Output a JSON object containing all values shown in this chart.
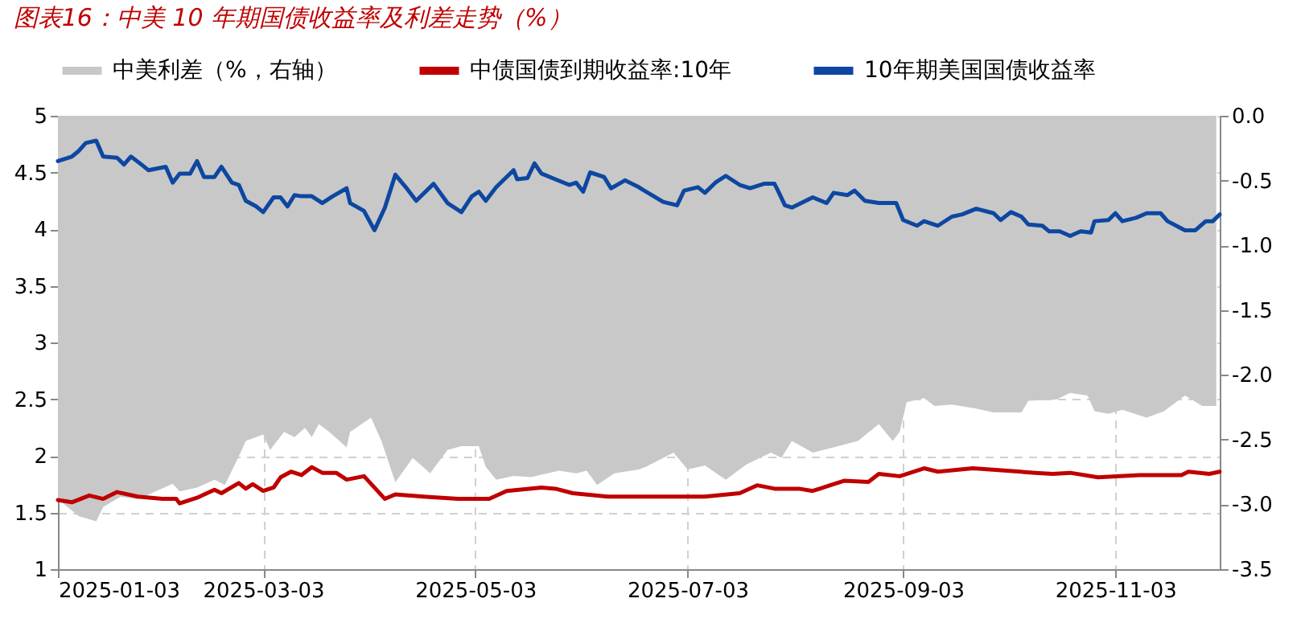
{
  "chart_data": {
    "type": "line",
    "title": "图表16：中美 10 年期国债收益率及利差走势（%）",
    "legend": "top",
    "grid": true,
    "xlim": [
      "2025-01-03",
      "2025-12-03"
    ],
    "xticks": [
      "2025-01-03",
      "2025-03-03",
      "2025-05-03",
      "2025-07-03",
      "2025-09-03",
      "2025-11-03"
    ],
    "ylim": [
      1,
      5
    ],
    "yticks": [
      1,
      1.5,
      2,
      2.5,
      3,
      3.5,
      4,
      4.5,
      5
    ],
    "y2lim": [
      -3.5,
      0
    ],
    "y2ticks": [
      {
        "value": 0,
        "label": "0.0"
      },
      -0.5,
      {
        "value": -1,
        "label": "-1.0"
      },
      -1.5,
      {
        "value": -2,
        "label": "-2.0"
      },
      -2.5,
      {
        "value": -3,
        "label": "-3.0"
      },
      -3.5
    ],
    "series": [
      {
        "name": "中美利差（%，右轴）",
        "type": "area",
        "axis": "y2",
        "color": "#c8c8c8",
        "x": [
          "2025-01-03",
          "2025-01-09",
          "2025-01-14",
          "2025-01-16",
          "2025-01-21",
          "2025-01-26",
          "2025-02-05",
          "2025-02-07",
          "2025-02-12",
          "2025-02-17",
          "2025-02-20",
          "2025-02-24",
          "2025-02-26",
          "2025-03-03",
          "2025-03-05",
          "2025-03-09",
          "2025-03-12",
          "2025-03-15",
          "2025-03-17",
          "2025-03-19",
          "2025-03-22",
          "2025-03-27",
          "2025-03-28",
          "2025-04-03",
          "2025-04-06",
          "2025-04-10",
          "2025-04-15",
          "2025-04-20",
          "2025-04-25",
          "2025-04-29",
          "2025-05-04",
          "2025-05-06",
          "2025-05-09",
          "2025-05-14",
          "2025-05-19",
          "2025-05-27",
          "2025-06-01",
          "2025-06-04",
          "2025-06-07",
          "2025-06-12",
          "2025-06-19",
          "2025-06-21",
          "2025-06-29",
          "2025-07-03",
          "2025-07-08",
          "2025-07-14",
          "2025-07-20",
          "2025-07-27",
          "2025-07-30",
          "2025-08-02",
          "2025-08-08",
          "2025-08-14",
          "2025-08-21",
          "2025-08-27",
          "2025-08-31",
          "2025-09-02",
          "2025-09-04",
          "2025-09-09",
          "2025-09-12",
          "2025-09-17",
          "2025-09-24",
          "2025-09-29",
          "2025-10-07",
          "2025-10-09",
          "2025-10-17",
          "2025-10-21",
          "2025-10-26",
          "2025-10-28",
          "2025-11-01",
          "2025-11-05",
          "2025-11-12",
          "2025-11-17",
          "2025-11-23",
          "2025-11-28",
          "2025-12-02"
        ],
        "values": [
          -2.96,
          -3.09,
          -3.13,
          -3.02,
          -2.94,
          -2.96,
          -2.84,
          -2.9,
          -2.87,
          -2.81,
          -2.85,
          -2.63,
          -2.51,
          -2.46,
          -2.58,
          -2.44,
          -2.48,
          -2.41,
          -2.48,
          -2.38,
          -2.44,
          -2.56,
          -2.44,
          -2.33,
          -2.51,
          -2.83,
          -2.64,
          -2.76,
          -2.58,
          -2.55,
          -2.55,
          -2.71,
          -2.81,
          -2.78,
          -2.79,
          -2.74,
          -2.76,
          -2.74,
          -2.85,
          -2.76,
          -2.73,
          -2.71,
          -2.6,
          -2.73,
          -2.7,
          -2.81,
          -2.69,
          -2.6,
          -2.64,
          -2.51,
          -2.6,
          -2.56,
          -2.51,
          -2.38,
          -2.51,
          -2.44,
          -2.21,
          -2.18,
          -2.24,
          -2.23,
          -2.26,
          -2.29,
          -2.29,
          -2.2,
          -2.19,
          -2.14,
          -2.16,
          -2.28,
          -2.3,
          -2.27,
          -2.33,
          -2.28,
          -2.16,
          -2.24,
          -2.24
        ]
      },
      {
        "name": "中债国债到期收益率:10年",
        "color": "#c00000",
        "x": [
          "2025-01-03",
          "2025-01-07",
          "2025-01-12",
          "2025-01-16",
          "2025-01-20",
          "2025-01-26",
          "2025-02-02",
          "2025-02-06",
          "2025-02-07",
          "2025-02-12",
          "2025-02-17",
          "2025-02-19",
          "2025-02-24",
          "2025-02-26",
          "2025-02-28",
          "2025-03-03",
          "2025-03-06",
          "2025-03-08",
          "2025-03-11",
          "2025-03-14",
          "2025-03-17",
          "2025-03-20",
          "2025-03-24",
          "2025-03-27",
          "2025-04-01",
          "2025-04-07",
          "2025-04-10",
          "2025-04-18",
          "2025-04-28",
          "2025-05-07",
          "2025-05-12",
          "2025-05-22",
          "2025-05-26",
          "2025-05-31",
          "2025-06-10",
          "2025-06-19",
          "2025-06-23",
          "2025-07-08",
          "2025-07-18",
          "2025-07-23",
          "2025-07-28",
          "2025-08-04",
          "2025-08-08",
          "2025-08-13",
          "2025-08-17",
          "2025-08-24",
          "2025-08-27",
          "2025-09-02",
          "2025-09-09",
          "2025-09-13",
          "2025-09-23",
          "2025-10-02",
          "2025-10-11",
          "2025-10-16",
          "2025-10-21",
          "2025-10-29",
          "2025-11-10",
          "2025-11-22",
          "2025-11-24",
          "2025-11-30",
          "2025-12-03"
        ],
        "values": [
          1.61,
          1.59,
          1.65,
          1.62,
          1.68,
          1.64,
          1.62,
          1.62,
          1.58,
          1.63,
          1.7,
          1.67,
          1.76,
          1.71,
          1.75,
          1.69,
          1.72,
          1.81,
          1.86,
          1.83,
          1.9,
          1.85,
          1.85,
          1.79,
          1.82,
          1.62,
          1.66,
          1.64,
          1.62,
          1.62,
          1.69,
          1.72,
          1.71,
          1.67,
          1.64,
          1.64,
          1.64,
          1.64,
          1.67,
          1.74,
          1.71,
          1.71,
          1.69,
          1.74,
          1.78,
          1.77,
          1.84,
          1.82,
          1.89,
          1.86,
          1.89,
          1.87,
          1.85,
          1.84,
          1.85,
          1.81,
          1.83,
          1.83,
          1.86,
          1.84,
          1.86
        ]
      },
      {
        "name": "10年期美国国债收益率",
        "color": "#0d47a1",
        "x": [
          "2025-01-03",
          "2025-01-07",
          "2025-01-09",
          "2025-01-11",
          "2025-01-14",
          "2025-01-16",
          "2025-01-20",
          "2025-01-22",
          "2025-01-24",
          "2025-01-27",
          "2025-01-29",
          "2025-02-03",
          "2025-02-05",
          "2025-02-07",
          "2025-02-10",
          "2025-02-12",
          "2025-02-14",
          "2025-02-17",
          "2025-02-19",
          "2025-02-22",
          "2025-02-24",
          "2025-02-26",
          "2025-03-01",
          "2025-03-03",
          "2025-03-06",
          "2025-03-08",
          "2025-03-10",
          "2025-03-12",
          "2025-03-14",
          "2025-03-17",
          "2025-03-20",
          "2025-03-23",
          "2025-03-27",
          "2025-03-28",
          "2025-04-01",
          "2025-04-04",
          "2025-04-07",
          "2025-04-10",
          "2025-04-13",
          "2025-04-16",
          "2025-04-21",
          "2025-04-25",
          "2025-04-29",
          "2025-05-02",
          "2025-05-04",
          "2025-05-06",
          "2025-05-09",
          "2025-05-14",
          "2025-05-15",
          "2025-05-18",
          "2025-05-20",
          "2025-05-22",
          "2025-05-26",
          "2025-05-30",
          "2025-06-01",
          "2025-06-03",
          "2025-06-05",
          "2025-06-09",
          "2025-06-11",
          "2025-06-15",
          "2025-06-19",
          "2025-06-20",
          "2025-06-26",
          "2025-06-30",
          "2025-07-02",
          "2025-07-06",
          "2025-07-08",
          "2025-07-11",
          "2025-07-14",
          "2025-07-18",
          "2025-07-21",
          "2025-07-25",
          "2025-07-28",
          "2025-07-29",
          "2025-07-31",
          "2025-08-02",
          "2025-08-06",
          "2025-08-08",
          "2025-08-12",
          "2025-08-14",
          "2025-08-18",
          "2025-08-20",
          "2025-08-23",
          "2025-08-27",
          "2025-09-01",
          "2025-09-03",
          "2025-09-07",
          "2025-09-09",
          "2025-09-13",
          "2025-09-17",
          "2025-09-20",
          "2025-09-24",
          "2025-09-29",
          "2025-10-01",
          "2025-10-04",
          "2025-10-07",
          "2025-10-09",
          "2025-10-13",
          "2025-10-15",
          "2025-10-18",
          "2025-10-21",
          "2025-10-24",
          "2025-10-27",
          "2025-10-28",
          "2025-11-01",
          "2025-11-03",
          "2025-11-05",
          "2025-11-09",
          "2025-11-12",
          "2025-11-16",
          "2025-11-18",
          "2025-11-23",
          "2025-11-26",
          "2025-11-29",
          "2025-12-01",
          "2025-12-03"
        ],
        "values": [
          4.6,
          4.64,
          4.69,
          4.76,
          4.78,
          4.64,
          4.63,
          4.57,
          4.64,
          4.57,
          4.52,
          4.55,
          4.41,
          4.49,
          4.49,
          4.6,
          4.46,
          4.46,
          4.55,
          4.41,
          4.39,
          4.25,
          4.2,
          4.15,
          4.28,
          4.28,
          4.2,
          4.3,
          4.29,
          4.29,
          4.23,
          4.29,
          4.36,
          4.23,
          4.16,
          3.99,
          4.19,
          4.48,
          4.37,
          4.25,
          4.4,
          4.23,
          4.15,
          4.29,
          4.33,
          4.25,
          4.37,
          4.52,
          4.44,
          4.45,
          4.58,
          4.49,
          4.44,
          4.39,
          4.41,
          4.33,
          4.5,
          4.46,
          4.36,
          4.43,
          4.37,
          4.35,
          4.24,
          4.21,
          4.34,
          4.37,
          4.32,
          4.41,
          4.47,
          4.39,
          4.36,
          4.4,
          4.4,
          4.34,
          4.21,
          4.19,
          4.25,
          4.28,
          4.23,
          4.32,
          4.3,
          4.34,
          4.25,
          4.23,
          4.23,
          4.08,
          4.03,
          4.07,
          4.03,
          4.11,
          4.13,
          4.18,
          4.14,
          4.08,
          4.15,
          4.11,
          4.04,
          4.03,
          3.98,
          3.98,
          3.94,
          3.98,
          3.97,
          4.07,
          4.08,
          4.14,
          4.07,
          4.1,
          4.14,
          4.14,
          4.07,
          3.99,
          3.99,
          4.07,
          4.07,
          4.13
        ]
      }
    ]
  }
}
